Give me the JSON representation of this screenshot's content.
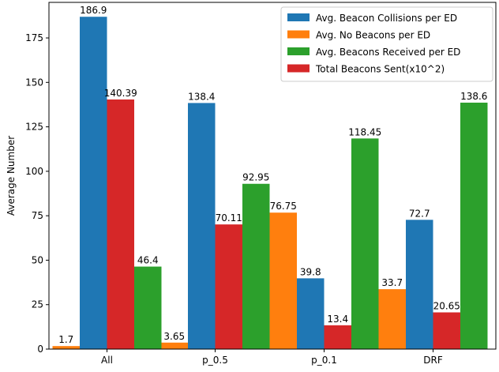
{
  "chart_data": {
    "type": "bar",
    "title": "",
    "xlabel": "",
    "ylabel": "Average Number",
    "ylim": [
      0,
      195
    ],
    "yticks": [
      0,
      25,
      50,
      75,
      100,
      125,
      150,
      175
    ],
    "grid": false,
    "legend_position": "top-right",
    "categories": [
      "All",
      "p_0.5",
      "p_0.1",
      "DRF"
    ],
    "series": [
      {
        "name": "Avg. Beacon Collisions per ED",
        "color": "#1f77b4",
        "values": [
          186.9,
          138.4,
          39.8,
          72.7
        ],
        "labels": [
          "186.9",
          "138.4",
          "39.8",
          "72.7"
        ]
      },
      {
        "name": "Avg. No Beacons per ED",
        "color": "#ff7f0e",
        "values": [
          1.7,
          3.65,
          76.75,
          33.7
        ],
        "labels": [
          "1.7",
          "3.65",
          "76.75",
          "33.7"
        ]
      },
      {
        "name": "Avg. Beacons Received per ED",
        "color": "#2ca02c",
        "values": [
          46.4,
          92.95,
          118.45,
          138.6
        ],
        "labels": [
          "46.4",
          "92.95",
          "118.45",
          "138.6"
        ]
      },
      {
        "name": "Total Beacons Sent(x10^2)",
        "color": "#d62728",
        "values": [
          140.39,
          70.11,
          13.4,
          20.65
        ],
        "labels": [
          "140.39",
          "70.11",
          "13.4",
          "20.65"
        ]
      }
    ]
  }
}
